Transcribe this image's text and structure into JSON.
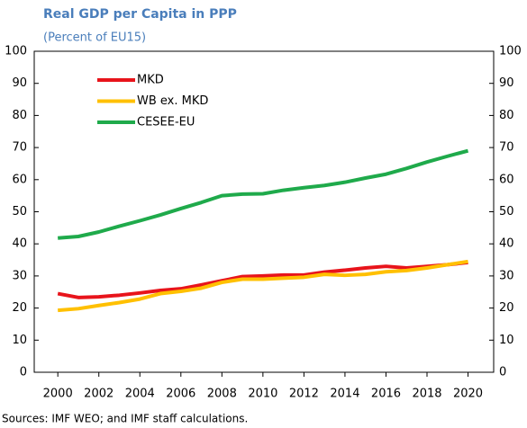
{
  "chart_data": {
    "type": "line",
    "title": "Real GDP per Capita in PPP",
    "subtitle": "(Percent of EU15)",
    "source": "Sources: IMF WEO; and IMF staff calculations.",
    "x": [
      2000,
      2001,
      2002,
      2003,
      2004,
      2005,
      2006,
      2007,
      2008,
      2009,
      2010,
      2011,
      2012,
      2013,
      2014,
      2015,
      2016,
      2017,
      2018,
      2019,
      2020
    ],
    "series": [
      {
        "name": "MKD",
        "color": "#e8141b",
        "values": [
          24.5,
          23.3,
          23.5,
          24,
          24.7,
          25.5,
          26,
          27.2,
          28.5,
          29.8,
          30,
          30.3,
          30.3,
          31.2,
          31.8,
          32.5,
          33,
          32.5,
          33,
          33.5,
          34.2
        ]
      },
      {
        "name": "WB ex. MKD",
        "color": "#ffc000",
        "values": [
          19.3,
          19.8,
          20.8,
          21.7,
          22.8,
          24.5,
          25.2,
          26.2,
          28,
          29,
          29,
          29.3,
          29.6,
          30.5,
          30.2,
          30.5,
          31.3,
          31.7,
          32.5,
          33.5,
          34.5
        ]
      },
      {
        "name": "CESEE-EU",
        "color": "#1faa4b",
        "values": [
          41.8,
          42.3,
          43.7,
          45.5,
          47.2,
          49,
          51,
          52.9,
          55,
          55.5,
          55.6,
          56.7,
          57.5,
          58.2,
          59.2,
          60.5,
          61.7,
          63.5,
          65.5,
          67.3,
          69
        ]
      }
    ],
    "xlim": [
      1998.85,
      2021.25
    ],
    "xticks": [
      2000,
      2002,
      2004,
      2006,
      2008,
      2010,
      2012,
      2014,
      2016,
      2018,
      2020
    ],
    "ylim": [
      0,
      100
    ],
    "yticks": [
      0,
      10,
      20,
      30,
      40,
      50,
      60,
      70,
      80,
      90,
      100
    ],
    "y2lim": [
      0,
      100
    ],
    "y2ticks": [
      0,
      10,
      20,
      30,
      40,
      50,
      60,
      70,
      80,
      90,
      100
    ],
    "legend": "top-left",
    "grid": false
  }
}
